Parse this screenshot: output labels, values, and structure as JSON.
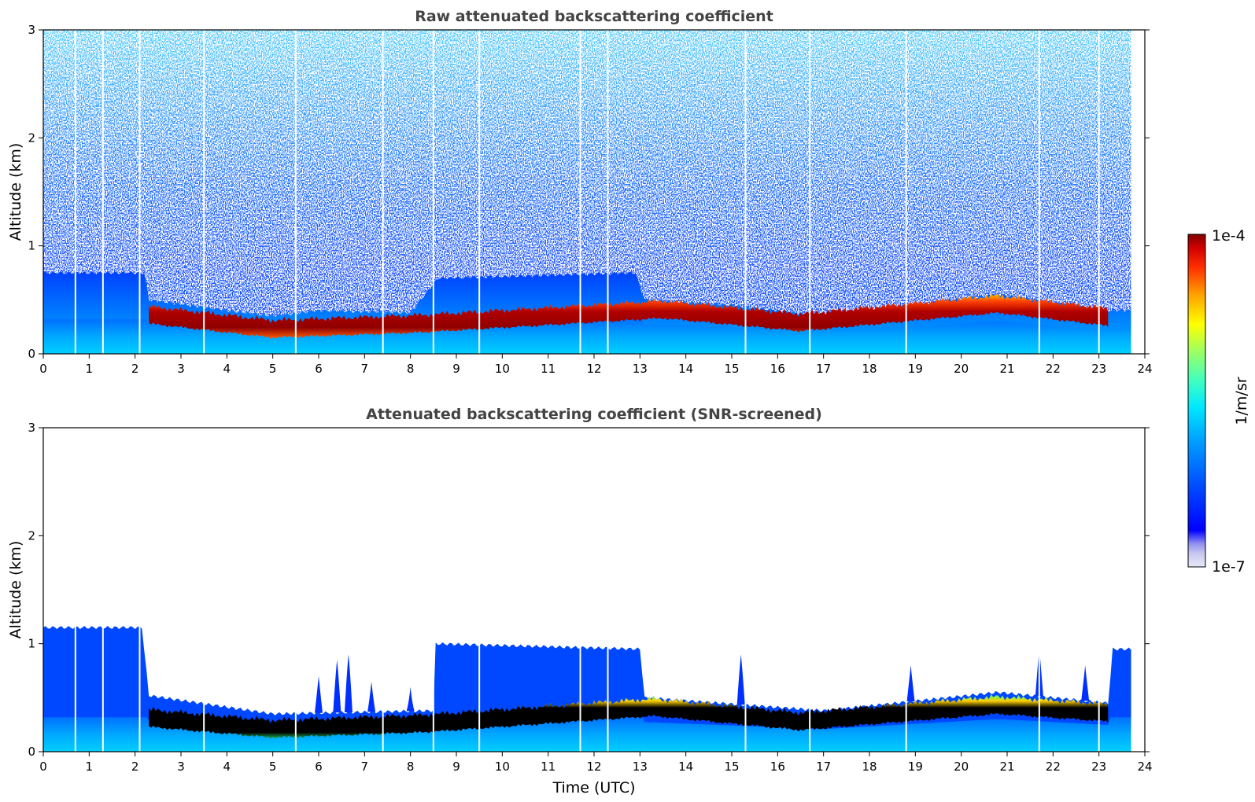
{
  "chart_data": [
    {
      "type": "heatmap",
      "title": "Raw attenuated backscattering coefficient",
      "xlabel": "",
      "ylabel": "Altitude (km)",
      "xlim": [
        0,
        24
      ],
      "ylim": [
        0,
        3
      ],
      "xticks": [
        "0",
        "1",
        "2",
        "3",
        "4",
        "5",
        "6",
        "7",
        "8",
        "9",
        "10",
        "11",
        "12",
        "13",
        "14",
        "15",
        "16",
        "17",
        "18",
        "19",
        "20",
        "21",
        "22",
        "23",
        "24"
      ],
      "yticks": [
        "0",
        "1",
        "2",
        "3"
      ],
      "data_end_hour": 23.7,
      "aerosol_layer_top_km": [
        {
          "t": 0.0,
          "z": 0.75
        },
        {
          "t": 2.2,
          "z": 0.75
        },
        {
          "t": 2.3,
          "z": 0.5
        },
        {
          "t": 4.0,
          "z": 0.4
        },
        {
          "t": 5.0,
          "z": 0.35
        },
        {
          "t": 6.0,
          "z": 0.4
        },
        {
          "t": 8.0,
          "z": 0.38
        },
        {
          "t": 8.6,
          "z": 0.7
        },
        {
          "t": 12.9,
          "z": 0.75
        },
        {
          "t": 13.1,
          "z": 0.5
        },
        {
          "t": 15.0,
          "z": 0.45
        },
        {
          "t": 17.0,
          "z": 0.35
        },
        {
          "t": 20.8,
          "z": 0.55
        },
        {
          "t": 23.2,
          "z": 0.4
        }
      ],
      "peak_backscatter_layer_km": [
        {
          "t": 2.3,
          "z": 0.35
        },
        {
          "t": 5.0,
          "z": 0.22
        },
        {
          "t": 8.3,
          "z": 0.27
        },
        {
          "t": 13.5,
          "z": 0.4
        },
        {
          "t": 16.5,
          "z": 0.28
        },
        {
          "t": 20.8,
          "z": 0.45
        },
        {
          "t": 23.2,
          "z": 0.33
        }
      ],
      "gaps_hours": [
        0.7,
        1.3,
        2.1,
        3.5,
        5.5,
        7.4,
        8.5,
        9.5,
        11.7,
        12.3,
        15.3,
        16.7,
        18.8,
        21.7,
        23.0
      ]
    },
    {
      "type": "heatmap",
      "title": "Attenuated backscattering coefficient (SNR-screened)",
      "xlabel": "Time (UTC)",
      "ylabel": "Altitude (km)",
      "xlim": [
        0,
        24
      ],
      "ylim": [
        0,
        3
      ],
      "xticks": [
        "0",
        "1",
        "2",
        "3",
        "4",
        "5",
        "6",
        "7",
        "8",
        "9",
        "10",
        "11",
        "12",
        "13",
        "14",
        "15",
        "16",
        "17",
        "18",
        "19",
        "20",
        "21",
        "22",
        "23",
        "24"
      ],
      "yticks": [
        "0",
        "1",
        "2",
        "3"
      ],
      "data_end_hour": 23.7,
      "screened_signal_top_km": [
        {
          "t": 0.0,
          "z": 1.15
        },
        {
          "t": 2.15,
          "z": 1.15
        },
        {
          "t": 2.3,
          "z": 0.52
        },
        {
          "t": 5.0,
          "z": 0.35
        },
        {
          "t": 8.5,
          "z": 0.38
        },
        {
          "t": 8.55,
          "z": 1.0
        },
        {
          "t": 13.0,
          "z": 0.95
        },
        {
          "t": 13.1,
          "z": 0.5
        },
        {
          "t": 17.0,
          "z": 0.38
        },
        {
          "t": 20.8,
          "z": 0.55
        },
        {
          "t": 23.2,
          "z": 0.45
        },
        {
          "t": 23.3,
          "z": 0.95
        },
        {
          "t": 23.7,
          "z": 0.95
        }
      ],
      "saturated_layer_km": [
        {
          "t": 2.3,
          "z": 0.3
        },
        {
          "t": 5.0,
          "z": 0.2
        },
        {
          "t": 8.3,
          "z": 0.25
        },
        {
          "t": 13.3,
          "z": 0.4
        },
        {
          "t": 16.5,
          "z": 0.27
        },
        {
          "t": 20.8,
          "z": 0.42
        },
        {
          "t": 23.2,
          "z": 0.35
        }
      ],
      "plume_spikes": [
        {
          "t": 6.0,
          "z": 0.7
        },
        {
          "t": 6.4,
          "z": 0.85
        },
        {
          "t": 6.65,
          "z": 0.9
        },
        {
          "t": 7.15,
          "z": 0.65
        },
        {
          "t": 8.0,
          "z": 0.6
        },
        {
          "t": 15.2,
          "z": 0.9
        },
        {
          "t": 18.9,
          "z": 0.8
        },
        {
          "t": 21.7,
          "z": 0.95
        },
        {
          "t": 22.7,
          "z": 0.8
        }
      ]
    }
  ],
  "colorbar": {
    "label": "1/m/sr",
    "max_label": "1e-4",
    "min_label": "1e-7",
    "scale": "log",
    "colormap": "jet",
    "colors": [
      "#e8e8f8",
      "#c8c8f0",
      "#a0a0f0",
      "#7070f0",
      "#0000ff",
      "#0060ff",
      "#00b0ff",
      "#00ffff",
      "#40ffc0",
      "#a0ff60",
      "#ffff00",
      "#ffb000",
      "#ff5000",
      "#e00000",
      "#800000"
    ]
  }
}
